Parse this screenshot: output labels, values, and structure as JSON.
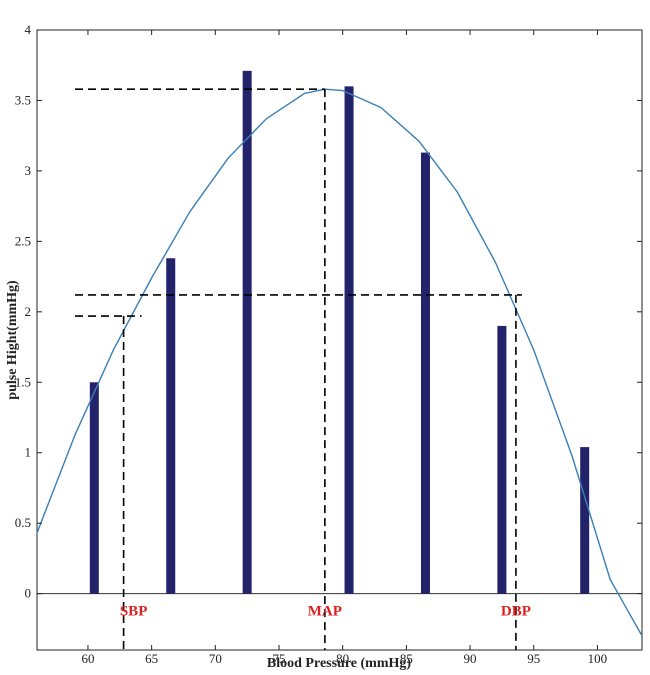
{
  "chart_data": {
    "type": "bar",
    "xlabel": "Blood Pressure (mmHg)",
    "ylabel": "pulse Hight(mmHg)",
    "xlim": [
      56,
      103.5
    ],
    "ylim": [
      -0.4,
      4
    ],
    "xticks": [
      60,
      65,
      70,
      75,
      80,
      85,
      90,
      95,
      100
    ],
    "yticks": [
      0,
      0.5,
      1,
      1.5,
      2,
      2.5,
      3,
      3.5,
      4
    ],
    "xtick_labels": [
      "60",
      "65",
      "70",
      "75",
      "80",
      "85",
      "90",
      "95",
      "100"
    ],
    "ytick_labels": [
      "0",
      "0.5",
      "1",
      "1.5",
      "2",
      "2.5",
      "3",
      "3.5",
      "4"
    ],
    "grid": false,
    "bars": {
      "x": [
        60.5,
        66.5,
        72.5,
        80.5,
        86.5,
        92.5,
        99.0
      ],
      "values": [
        1.5,
        2.38,
        3.71,
        3.6,
        3.13,
        1.9,
        1.04
      ]
    },
    "curve": {
      "vertex_x": 78.6,
      "vertex_y": 3.58,
      "points_x": [
        56.0,
        59.0,
        62.0,
        65.0,
        68.0,
        71.0,
        74.0,
        77.0,
        78.6,
        80.0,
        83.0,
        86.0,
        89.0,
        92.0,
        95.0,
        98.0,
        101.0,
        103.5
      ],
      "points_y": [
        0.43,
        1.13,
        1.73,
        2.24,
        2.71,
        3.09,
        3.37,
        3.55,
        3.58,
        3.57,
        3.45,
        3.21,
        2.85,
        2.35,
        1.73,
        0.98,
        0.1,
        -0.3
      ]
    },
    "annotations": [
      {
        "text": "SBP",
        "x": 62.8,
        "hline_y": 1.97
      },
      {
        "text": "MAP",
        "x": 78.6,
        "hline_y": 3.58
      },
      {
        "text": "DBP",
        "x": 93.6,
        "hline_y": 2.12
      }
    ],
    "colors": {
      "bar": "#23236b",
      "curve": "#3a7fb5",
      "annotation": "#e02020",
      "dashed": "#000000"
    }
  }
}
